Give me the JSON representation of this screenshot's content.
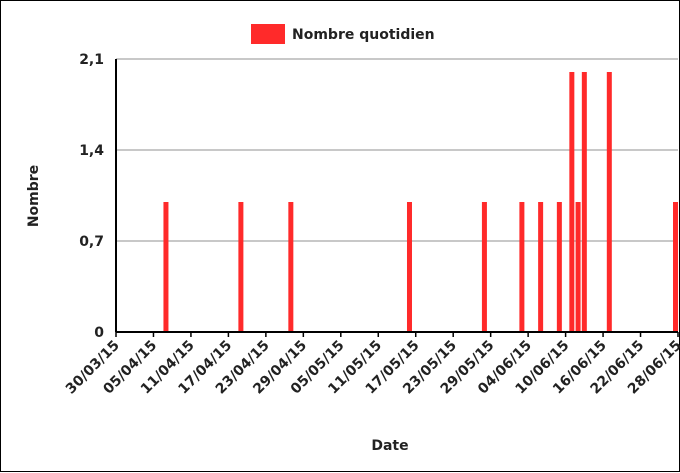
{
  "chart_data": {
    "type": "bar",
    "title": "",
    "xlabel": "Date",
    "ylabel": "Nombre",
    "ylim": [
      0,
      2.1
    ],
    "y_ticks": [
      "0",
      "0,7",
      "1,4",
      "2,1"
    ],
    "y_tick_values": [
      0,
      0.7,
      1.4,
      2.1
    ],
    "x_ticks": [
      "30/03/15",
      "05/04/15",
      "11/04/15",
      "17/04/15",
      "23/04/15",
      "29/04/15",
      "05/05/15",
      "11/05/15",
      "17/05/15",
      "23/05/15",
      "29/05/15",
      "04/06/15",
      "10/06/15",
      "16/06/15",
      "22/06/15",
      "28/06/15"
    ],
    "x_range": [
      "2015-03-30",
      "2015-06-28"
    ],
    "grid": true,
    "legend_position": "top",
    "series": [
      {
        "name": "Nombre quotidien",
        "color": "#ff2a2a",
        "points": [
          {
            "date": "2015-04-07",
            "value": 1
          },
          {
            "date": "2015-04-19",
            "value": 1
          },
          {
            "date": "2015-04-27",
            "value": 1
          },
          {
            "date": "2015-05-16",
            "value": 1
          },
          {
            "date": "2015-05-28",
            "value": 1
          },
          {
            "date": "2015-06-03",
            "value": 1
          },
          {
            "date": "2015-06-06",
            "value": 1
          },
          {
            "date": "2015-06-09",
            "value": 1
          },
          {
            "date": "2015-06-11",
            "value": 2
          },
          {
            "date": "2015-06-12",
            "value": 1
          },
          {
            "date": "2015-06-13",
            "value": 2
          },
          {
            "date": "2015-06-17",
            "value": 2
          },
          {
            "date": "2015-06-28",
            "value": 1
          }
        ]
      }
    ]
  }
}
